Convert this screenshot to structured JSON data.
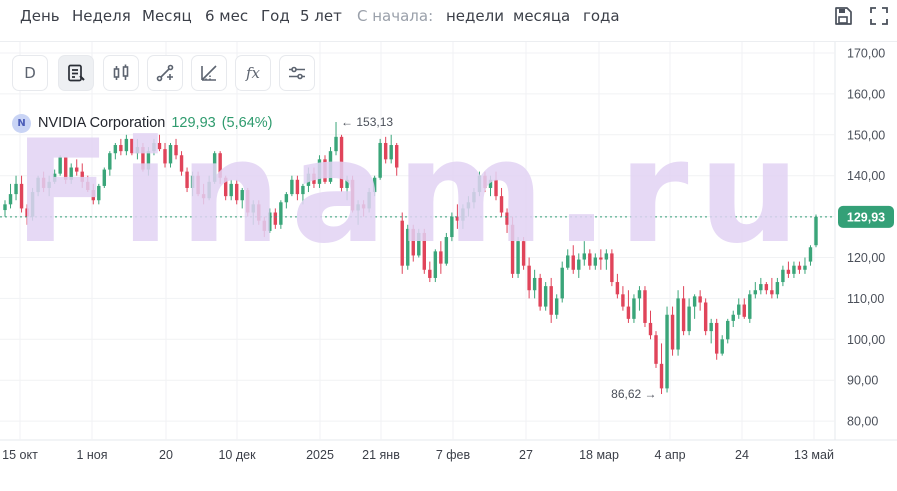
{
  "toolbar": {
    "periods": [
      "День",
      "Неделя",
      "Месяц",
      "6 мес",
      "Год",
      "5 лет"
    ],
    "since_label": "С начала:",
    "since_options": [
      "недели",
      "месяца",
      "года"
    ],
    "save_icon": "save-icon",
    "fullscreen_icon": "fullscreen-icon"
  },
  "tools": {
    "interval_label": "D",
    "icons": [
      "notes-icon",
      "candles-icon",
      "trendline-icon",
      "fib-icon",
      "indicators-icon",
      "settings-icon"
    ],
    "fx_label": "fx"
  },
  "instrument": {
    "badge": "N",
    "name": "NVIDIA Corporation",
    "last": "129,93",
    "change": "(5,64%)"
  },
  "watermark": "Finam.ru",
  "colors": {
    "up": "#3aa579",
    "down": "#e0445a",
    "price_tag": "#34a077",
    "watermark": "#e2d3f4"
  },
  "chart_data": {
    "type": "candlestick",
    "y_ticks": [
      "170,00",
      "160,00",
      "150,00",
      "140,00",
      "130,00",
      "120,00",
      "110,00",
      "100,00",
      "90,00",
      "80,00"
    ],
    "ylim": [
      78,
      173
    ],
    "x_labels": [
      "15 окт",
      "1 ноя",
      "20",
      "10 дек",
      "2025",
      "21 янв",
      "7 фев",
      "27",
      "18 мар",
      "4 апр",
      "24",
      "13 май"
    ],
    "last_price": 129.93,
    "last_price_label": "129,93",
    "high_marker": {
      "value": 153.13,
      "label": "153,13"
    },
    "low_marker": {
      "value": 86.62,
      "label": "86,62"
    },
    "ohlc": [
      [
        131.6,
        134,
        130,
        133.0
      ],
      [
        133.0,
        138,
        132,
        135.5
      ],
      [
        135.5,
        140,
        134,
        138.0
      ],
      [
        138.0,
        140,
        131,
        132.0
      ],
      [
        132.0,
        133,
        128,
        130.0
      ],
      [
        130.0,
        137,
        129,
        136.0
      ],
      [
        136.0,
        140,
        135,
        139.5
      ],
      [
        139.5,
        141,
        136,
        137.0
      ],
      [
        137.0,
        140,
        135,
        138.5
      ],
      [
        138.5,
        141.5,
        138,
        140.5
      ],
      [
        140.5,
        145,
        140,
        144.5
      ],
      [
        144.5,
        144.5,
        138,
        139.0
      ],
      [
        139.0,
        143,
        138,
        142.0
      ],
      [
        142.0,
        144,
        140,
        141.0
      ],
      [
        141.0,
        143,
        137,
        138.5
      ],
      [
        138.5,
        140,
        136,
        136.5
      ],
      [
        136.5,
        138,
        133,
        134.0
      ],
      [
        134.0,
        138,
        133,
        137.5
      ],
      [
        137.5,
        142,
        137,
        141.5
      ],
      [
        141.5,
        146,
        140,
        145.5
      ],
      [
        145.5,
        148,
        144,
        147.5
      ],
      [
        147.5,
        149,
        145,
        146.0
      ],
      [
        146.0,
        150,
        145,
        149.0
      ],
      [
        149.0,
        149,
        145,
        145.5
      ],
      [
        145.5,
        149,
        144,
        147.0
      ],
      [
        147.0,
        148,
        141,
        141.5
      ],
      [
        141.5,
        147,
        140,
        146.0
      ],
      [
        146.0,
        149,
        145,
        148.0
      ],
      [
        148.0,
        150,
        146,
        146.5
      ],
      [
        146.5,
        148,
        142,
        143.0
      ],
      [
        143.0,
        148,
        142,
        147.5
      ],
      [
        147.5,
        149,
        144,
        145.0
      ],
      [
        145.0,
        146,
        140,
        141.0
      ],
      [
        141.0,
        142,
        136,
        137.0
      ],
      [
        137.0,
        141,
        135,
        140.0
      ],
      [
        140.0,
        141,
        135,
        135.5
      ],
      [
        135.5,
        138,
        133,
        134.5
      ],
      [
        134.5,
        140,
        134,
        138.5
      ],
      [
        138.5,
        146,
        138,
        145.5
      ],
      [
        145.5,
        146,
        138,
        139.5
      ],
      [
        139.5,
        140,
        134,
        135.0
      ],
      [
        135.0,
        139,
        134,
        138.0
      ],
      [
        138.0,
        139,
        133,
        134.0
      ],
      [
        134.0,
        137,
        132,
        136.5
      ],
      [
        136.5,
        137,
        130,
        131.0
      ],
      [
        131.0,
        134,
        128,
        133.0
      ],
      [
        133.0,
        134,
        128,
        129.0
      ],
      [
        129.0,
        130,
        125,
        126.5
      ],
      [
        126.5,
        132,
        126,
        131.0
      ],
      [
        131.0,
        132,
        127,
        128.0
      ],
      [
        128.0,
        134,
        127,
        133.5
      ],
      [
        133.5,
        136,
        132,
        135.5
      ],
      [
        135.5,
        140,
        135,
        139.0
      ],
      [
        139.0,
        140,
        134,
        135.5
      ],
      [
        135.5,
        138,
        133,
        137.5
      ],
      [
        137.5,
        142,
        136,
        140.5
      ],
      [
        140.5,
        142,
        137,
        138.0
      ],
      [
        138.0,
        145,
        137,
        144.0
      ],
      [
        144.0,
        145,
        138,
        138.5
      ],
      [
        138.5,
        147,
        138,
        146.0
      ],
      [
        146.0,
        153.13,
        145,
        149.5
      ],
      [
        149.5,
        150,
        136,
        137.0
      ],
      [
        137.0,
        140,
        134,
        139.0
      ],
      [
        139.0,
        140,
        131,
        131.5
      ],
      [
        131.5,
        134,
        128,
        133.0
      ],
      [
        133.0,
        134,
        130,
        132.0
      ],
      [
        132.0,
        137,
        131,
        136.0
      ],
      [
        136.0,
        140,
        135,
        139.5
      ],
      [
        139.5,
        149,
        139,
        148.0
      ],
      [
        148.0,
        149.5,
        143,
        144.0
      ],
      [
        144.0,
        150,
        143,
        147.5
      ],
      [
        147.5,
        148,
        140,
        142.0
      ],
      [
        129.0,
        131,
        116,
        118.0
      ],
      [
        118.0,
        128,
        117,
        127.0
      ],
      [
        127.0,
        128,
        119,
        120.5
      ],
      [
        120.5,
        127,
        120,
        126.0
      ],
      [
        126.0,
        127,
        116,
        117.0
      ],
      [
        117.0,
        119,
        114,
        115.0
      ],
      [
        115.0,
        122,
        114,
        121.5
      ],
      [
        121.5,
        124,
        116,
        118.5
      ],
      [
        118.5,
        126,
        118,
        125.0
      ],
      [
        125.0,
        131,
        124,
        130.0
      ],
      [
        130.0,
        133,
        127,
        129.0
      ],
      [
        129.0,
        133,
        127,
        132.0
      ],
      [
        132.0,
        135,
        130,
        133.5
      ],
      [
        133.5,
        137,
        132,
        136.0
      ],
      [
        136.0,
        141,
        135,
        140.0
      ],
      [
        140.0,
        141,
        136,
        137.0
      ],
      [
        137.0,
        140,
        135,
        139.0
      ],
      [
        139.0,
        141,
        134,
        135.0
      ],
      [
        135.0,
        137,
        130,
        131.0
      ],
      [
        131.0,
        132,
        126,
        128.0
      ],
      [
        128.0,
        130,
        115,
        116.0
      ],
      [
        116.0,
        125,
        115,
        124.0
      ],
      [
        124.0,
        125,
        117,
        118.0
      ],
      [
        118.0,
        120,
        110,
        112.0
      ],
      [
        112.0,
        117,
        110,
        115.0
      ],
      [
        115.0,
        116,
        107,
        108.0
      ],
      [
        108.0,
        114,
        107,
        113.0
      ],
      [
        113.0,
        115,
        104,
        106.0
      ],
      [
        106.0,
        111,
        105,
        110.0
      ],
      [
        110.0,
        119,
        109,
        117.5
      ],
      [
        117.5,
        122,
        117,
        120.5
      ],
      [
        120.5,
        123,
        116,
        117.0
      ],
      [
        117.0,
        121,
        115,
        119.5
      ],
      [
        119.5,
        124,
        118,
        121.0
      ],
      [
        121.0,
        122,
        117,
        118.0
      ],
      [
        118.0,
        121,
        117,
        120.0
      ],
      [
        120.0,
        122,
        117,
        119.5
      ],
      [
        119.5,
        122,
        117,
        121.0
      ],
      [
        121.0,
        122,
        113,
        114.0
      ],
      [
        114.0,
        116,
        110,
        111.0
      ],
      [
        111.0,
        113,
        107,
        108.0
      ],
      [
        108.0,
        112,
        104,
        105.0
      ],
      [
        105.0,
        111,
        104,
        110.0
      ],
      [
        110.0,
        113,
        107,
        112.0
      ],
      [
        112.0,
        113,
        103,
        104.0
      ],
      [
        104.0,
        107,
        100,
        101.0
      ],
      [
        101.0,
        102,
        93,
        94.0
      ],
      [
        94.0,
        99,
        86.62,
        88.0
      ],
      [
        88.0,
        108,
        87,
        106.0
      ],
      [
        106.0,
        108,
        96,
        97.5
      ],
      [
        97.5,
        112,
        96,
        110.0
      ],
      [
        110.0,
        113,
        101,
        102.0
      ],
      [
        102.0,
        110,
        101,
        108.0
      ],
      [
        108.0,
        111,
        105,
        110.5
      ],
      [
        110.5,
        112,
        107,
        109.0
      ],
      [
        109.0,
        110,
        101,
        102.0
      ],
      [
        102.0,
        105,
        99,
        104.0
      ],
      [
        104.0,
        105,
        95,
        96.5
      ],
      [
        96.5,
        101,
        96,
        100.0
      ],
      [
        100.0,
        105,
        99,
        104.5
      ],
      [
        104.5,
        107,
        103,
        106.0
      ],
      [
        106.0,
        110,
        105,
        108.5
      ],
      [
        108.5,
        110,
        105,
        105.5
      ],
      [
        105.0,
        112,
        104,
        111.0
      ],
      [
        111.0,
        114,
        110,
        112.0
      ],
      [
        112.0,
        115,
        111,
        113.5
      ],
      [
        113.5,
        114,
        111,
        112.0
      ],
      [
        112.0,
        115,
        110,
        111.0
      ],
      [
        111.0,
        115,
        110,
        114.0
      ],
      [
        114.0,
        118,
        113,
        117.0
      ],
      [
        117.0,
        119,
        115,
        116.0
      ],
      [
        116.0,
        119,
        115,
        118.0
      ],
      [
        118.0,
        119,
        116,
        117.0
      ],
      [
        117.0,
        120,
        116,
        118.0
      ],
      [
        119.0,
        123,
        118,
        122.5
      ],
      [
        123.0,
        130.5,
        122.5,
        129.93
      ]
    ]
  }
}
